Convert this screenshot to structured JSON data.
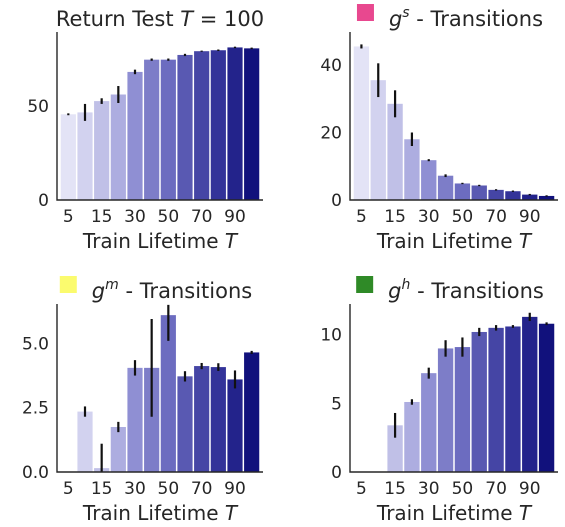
{
  "chart_data": [
    {
      "type": "bar",
      "title_text": "Return Test ",
      "title_var": "T",
      "title_suffix": " = 100",
      "title_marker_color": "",
      "xlabel_text": "Train Lifetime ",
      "xlabel_var": "T",
      "categories": [
        5,
        10,
        15,
        20,
        30,
        40,
        50,
        60,
        70,
        80,
        90,
        100
      ],
      "xtick_labels": [
        "5",
        "15",
        "30",
        "50",
        "70",
        "90"
      ],
      "xtick_at": [
        5,
        15,
        30,
        50,
        70,
        90
      ],
      "values": [
        45.5,
        46.5,
        52.5,
        56,
        68,
        74.5,
        74.5,
        77,
        79,
        79.5,
        81,
        80.5
      ],
      "errors": [
        0.5,
        4.5,
        1.5,
        4.5,
        1.2,
        0.6,
        0.6,
        0.6,
        0.3,
        0.4,
        0.4,
        0.4
      ],
      "ylim": [
        0,
        86
      ],
      "yticks": [
        0,
        50
      ],
      "ytick_labels": [
        "0",
        "50"
      ]
    },
    {
      "type": "bar",
      "title_text": " - Transitions",
      "title_var": "g",
      "title_sup": "s",
      "title_marker_color": "#e8488f",
      "xlabel_text": "Train Lifetime ",
      "xlabel_var": "T",
      "categories": [
        5,
        10,
        15,
        20,
        30,
        40,
        50,
        60,
        70,
        80,
        90,
        100
      ],
      "xtick_labels": [
        "5",
        "15",
        "30",
        "50",
        "70",
        "90"
      ],
      "xtick_at": [
        5,
        15,
        30,
        50,
        70,
        90
      ],
      "values": [
        45.5,
        35.5,
        28.5,
        18,
        11.8,
        7.2,
        4.9,
        4.3,
        3.0,
        2.6,
        1.6,
        1.2
      ],
      "errors": [
        0.6,
        5,
        4,
        2,
        0.3,
        0.4,
        0.2,
        0.2,
        0.2,
        0.2,
        0.2,
        0.2
      ],
      "ylim": [
        0,
        48
      ],
      "yticks": [
        0,
        20,
        40
      ],
      "ytick_labels": [
        "0",
        "20",
        "40"
      ]
    },
    {
      "type": "bar",
      "title_text": " - Transitions",
      "title_var": "g",
      "title_sup": "m",
      "title_marker_color": "#fbfb6e",
      "xlabel_text": "Train Lifetime ",
      "xlabel_var": "T",
      "categories": [
        5,
        10,
        15,
        20,
        30,
        40,
        50,
        60,
        70,
        80,
        90,
        100
      ],
      "xtick_labels": [
        "5",
        "15",
        "30",
        "50",
        "70",
        "90"
      ],
      "xtick_at": [
        5,
        15,
        30,
        50,
        70,
        90
      ],
      "values": [
        0,
        2.35,
        0.15,
        1.75,
        4.05,
        4.05,
        6.1,
        3.72,
        4.12,
        4.08,
        3.6,
        4.65
      ],
      "errors": [
        0,
        0.2,
        0.95,
        0.2,
        0.3,
        1.9,
        1.0,
        0.2,
        0.12,
        0.15,
        0.35,
        0.06
      ],
      "ylim": [
        0,
        6.3
      ],
      "yticks": [
        0,
        2.5,
        5.0
      ],
      "ytick_labels": [
        "0.0",
        "2.5",
        "5.0"
      ]
    },
    {
      "type": "bar",
      "title_text": " - Transitions",
      "title_var": "g",
      "title_sup": "h",
      "title_marker_color": "#2f8a27",
      "xlabel_text": "Train Lifetime ",
      "xlabel_var": "T",
      "categories": [
        5,
        10,
        15,
        20,
        30,
        40,
        50,
        60,
        70,
        80,
        90,
        100
      ],
      "xtick_labels": [
        "5",
        "15",
        "30",
        "50",
        "70",
        "90"
      ],
      "xtick_at": [
        5,
        15,
        30,
        50,
        70,
        90
      ],
      "values": [
        0,
        0,
        3.4,
        5.1,
        7.2,
        9.0,
        9.1,
        10.2,
        10.5,
        10.6,
        11.3,
        10.8
      ],
      "errors": [
        0,
        0,
        0.9,
        0.2,
        0.4,
        0.6,
        0.7,
        0.3,
        0.2,
        0.1,
        0.3,
        0.1
      ],
      "ylim": [
        0,
        11.8
      ],
      "yticks": [
        0,
        5,
        10
      ],
      "ytick_labels": [
        "0",
        "5",
        "10"
      ]
    }
  ],
  "bar_colors": [
    "#e3e3f6",
    "#d2d2ef",
    "#c0c0e7",
    "#adade0",
    "#8f8fd3",
    "#7d7dc8",
    "#6c6cc0",
    "#5959b2",
    "#4545a5",
    "#333399",
    "#23238b",
    "#11117c"
  ],
  "error_color": "#111111"
}
